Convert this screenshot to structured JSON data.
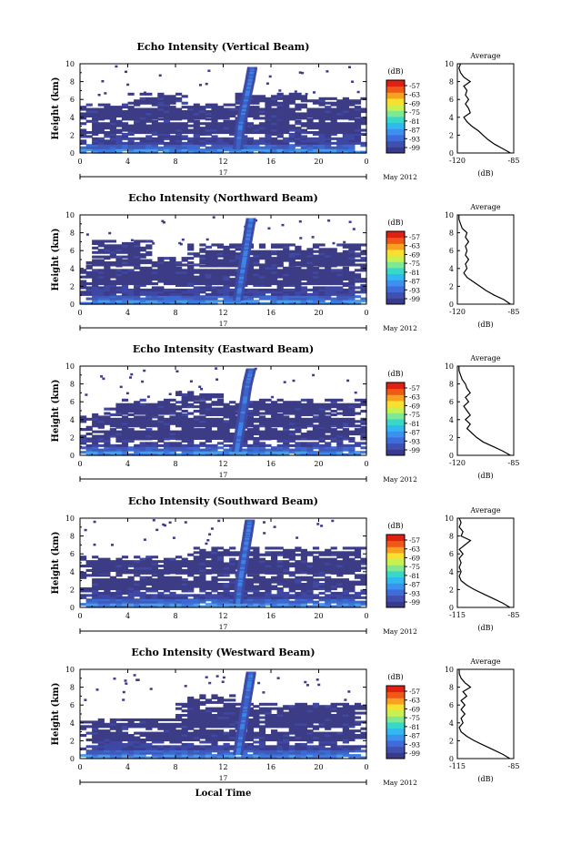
{
  "figure": {
    "xlabel": "Local Time",
    "date_label": "May 2012",
    "day_label": "17"
  },
  "colorbar": {
    "unit": "(dB)",
    "ticks": [
      "-57",
      "-63",
      "-69",
      "-75",
      "-81",
      "-87",
      "-93",
      "-99"
    ],
    "colors": [
      "#3a3a8c",
      "#4050b0",
      "#3f6cd8",
      "#3c90ee",
      "#30b8f0",
      "#38d8c8",
      "#80e890",
      "#c8f050",
      "#f8e030",
      "#f8a020",
      "#f05818",
      "#e02010"
    ]
  },
  "chart_data": [
    {
      "type": "heatmap",
      "title": "Echo Intensity (Vertical Beam)",
      "ylabel": "Height (km)",
      "x_ticks": [
        "0",
        "4",
        "8",
        "12",
        "16",
        "20",
        "0"
      ],
      "y_ticks": [
        "0",
        "2",
        "4",
        "6",
        "8",
        "10"
      ],
      "xlim": [
        0,
        24
      ],
      "ylim": [
        0,
        10
      ],
      "profile": {
        "title": "Average",
        "xlabel": "(dB)",
        "x_ticks": [
          "-120",
          "-85"
        ],
        "xlim": [
          -120,
          -85
        ],
        "y_ticks": [
          "0",
          "2",
          "4",
          "6",
          "8",
          "10"
        ],
        "h": [
          0,
          0.5,
          1,
          1.5,
          2,
          2.5,
          3,
          3.5,
          4,
          4.5,
          5,
          5.5,
          6,
          6.5,
          7,
          7.5,
          8,
          8.5,
          9,
          9.5,
          10
        ],
        "v": [
          -87,
          -92,
          -97,
          -101,
          -104,
          -107,
          -111,
          -114,
          -116,
          -112,
          -113,
          -115,
          -113,
          -115,
          -114,
          -116,
          -112,
          -116,
          -118,
          -119,
          -118
        ]
      },
      "blocks": [
        [
          0,
          0,
          24,
          2.2,
          1
        ],
        [
          0,
          2.2,
          24,
          3.8,
          0
        ],
        [
          0,
          3.8,
          24,
          5.5,
          0
        ],
        [
          4,
          5.5,
          9,
          6.6,
          0
        ],
        [
          13,
          5.5,
          19,
          6.6,
          0
        ],
        [
          19,
          5.5,
          24,
          6.2,
          0
        ]
      ],
      "plume": [
        [
          13.2,
          0.5
        ],
        [
          13.4,
          3
        ],
        [
          13.8,
          5.5
        ],
        [
          14.2,
          8
        ],
        [
          14.4,
          9.5
        ]
      ]
    },
    {
      "type": "heatmap",
      "title": "Echo Intensity (Northward Beam)",
      "ylabel": "Height (km)",
      "x_ticks": [
        "0",
        "4",
        "8",
        "12",
        "16",
        "20",
        "0"
      ],
      "y_ticks": [
        "0",
        "2",
        "4",
        "6",
        "8",
        "10"
      ],
      "xlim": [
        0,
        24
      ],
      "ylim": [
        0,
        10
      ],
      "profile": {
        "title": "Average",
        "xlabel": "(dB)",
        "x_ticks": [
          "-120",
          "-85"
        ],
        "xlim": [
          -120,
          -85
        ],
        "y_ticks": [
          "0",
          "2",
          "4",
          "6",
          "8",
          "10"
        ],
        "h": [
          0,
          0.5,
          1,
          1.5,
          2,
          2.5,
          3,
          3.5,
          4,
          4.5,
          5,
          5.5,
          6,
          6.5,
          7,
          7.5,
          8,
          8.5,
          9,
          9.5,
          10
        ],
        "v": [
          -87,
          -91,
          -97,
          -102,
          -106,
          -110,
          -114,
          -116,
          -114,
          -115,
          -113,
          -115,
          -114,
          -115,
          -113,
          -115,
          -114,
          -117,
          -118,
          -119,
          -119
        ]
      },
      "blocks": [
        [
          0,
          0,
          24,
          2.2,
          1
        ],
        [
          0,
          2.2,
          24,
          4.3,
          0
        ],
        [
          0,
          4.3,
          9,
          5.2,
          0
        ],
        [
          9,
          4.3,
          24,
          6.6,
          0
        ],
        [
          1,
          5.2,
          6,
          7.2,
          0
        ]
      ],
      "plume": [
        [
          13.2,
          0.5
        ],
        [
          13.5,
          3
        ],
        [
          13.8,
          5.5
        ],
        [
          14.1,
          8
        ],
        [
          14.3,
          9.5
        ]
      ]
    },
    {
      "type": "heatmap",
      "title": "Echo Intensity (Eastward Beam)",
      "ylabel": "Height (km)",
      "x_ticks": [
        "0",
        "4",
        "8",
        "12",
        "16",
        "20",
        "0"
      ],
      "y_ticks": [
        "0",
        "2",
        "4",
        "6",
        "8",
        "10"
      ],
      "xlim": [
        0,
        24
      ],
      "ylim": [
        0,
        10
      ],
      "profile": {
        "title": "Average",
        "xlabel": "(dB)",
        "x_ticks": [
          "-120",
          "-85"
        ],
        "xlim": [
          -120,
          -85
        ],
        "y_ticks": [
          "0",
          "2",
          "4",
          "6",
          "8",
          "10"
        ],
        "h": [
          0,
          0.5,
          1,
          1.5,
          2,
          2.5,
          3,
          3.5,
          4,
          4.5,
          5,
          5.5,
          6,
          6.5,
          7,
          7.5,
          8,
          8.5,
          9,
          9.5,
          10
        ],
        "v": [
          -87,
          -92,
          -98,
          -104,
          -108,
          -111,
          -114,
          -112,
          -115,
          -112,
          -114,
          -116,
          -113,
          -115,
          -112,
          -114,
          -115,
          -117,
          -118,
          -119,
          -119
        ]
      },
      "blocks": [
        [
          0,
          0,
          24,
          1.8,
          1
        ],
        [
          0,
          1.8,
          24,
          3.2,
          0
        ],
        [
          0,
          3.2,
          24,
          4.6,
          0
        ],
        [
          2,
          4.6,
          9,
          6.2,
          0
        ],
        [
          9,
          4.6,
          24,
          6.2,
          0
        ],
        [
          8,
          6.2,
          12,
          7.2,
          0
        ]
      ],
      "plume": [
        [
          13.1,
          0.5
        ],
        [
          13.4,
          3
        ],
        [
          13.7,
          5.5
        ],
        [
          14,
          8
        ],
        [
          14.3,
          9.6
        ]
      ]
    },
    {
      "type": "heatmap",
      "title": "Echo Intensity (Southward Beam)",
      "ylabel": "Height (km)",
      "x_ticks": [
        "0",
        "4",
        "8",
        "12",
        "16",
        "20",
        "0"
      ],
      "y_ticks": [
        "0",
        "2",
        "4",
        "6",
        "8",
        "10"
      ],
      "xlim": [
        0,
        24
      ],
      "ylim": [
        0,
        10
      ],
      "profile": {
        "title": "Average",
        "xlabel": "(dB)",
        "x_ticks": [
          "-115",
          "-85"
        ],
        "xlim": [
          -115,
          -85
        ],
        "y_ticks": [
          "0",
          "2",
          "4",
          "6",
          "8",
          "10"
        ],
        "h": [
          0,
          0.5,
          1,
          1.5,
          2,
          2.5,
          3,
          3.5,
          4,
          4.5,
          5,
          5.5,
          6,
          6.5,
          7,
          7.5,
          8,
          8.5,
          9,
          9.5,
          10
        ],
        "v": [
          -87,
          -91,
          -96,
          -101,
          -106,
          -110,
          -113,
          -114,
          -113,
          -114,
          -113,
          -114,
          -112,
          -114,
          -111,
          -108,
          -113,
          -112,
          -114,
          -113,
          -114
        ]
      },
      "blocks": [
        [
          0,
          0,
          24,
          2,
          1
        ],
        [
          0,
          2,
          24,
          3.8,
          0
        ],
        [
          0,
          3.8,
          24,
          5.8,
          0
        ],
        [
          9,
          5.8,
          24,
          6.8,
          0
        ]
      ],
      "plume": [
        [
          13.2,
          0.5
        ],
        [
          13.4,
          3
        ],
        [
          13.7,
          5.5
        ],
        [
          14,
          8
        ],
        [
          14.2,
          9.7
        ]
      ]
    },
    {
      "type": "heatmap",
      "title": "Echo Intensity (Westward Beam)",
      "ylabel": "Height (km)",
      "x_ticks": [
        "0",
        "4",
        "8",
        "12",
        "16",
        "20",
        "0"
      ],
      "y_ticks": [
        "0",
        "2",
        "4",
        "6",
        "8",
        "10"
      ],
      "xlim": [
        0,
        24
      ],
      "ylim": [
        0,
        10
      ],
      "profile": {
        "title": "Average",
        "xlabel": "(dB)",
        "x_ticks": [
          "-115",
          "-85"
        ],
        "xlim": [
          -115,
          -85
        ],
        "y_ticks": [
          "0",
          "2",
          "4",
          "6",
          "8",
          "10"
        ],
        "h": [
          0,
          0.5,
          1,
          1.5,
          2,
          2.5,
          3,
          3.5,
          4,
          4.5,
          5,
          5.5,
          6,
          6.5,
          7,
          7.5,
          8,
          8.5,
          9,
          9.5,
          10
        ],
        "v": [
          -87,
          -91,
          -96,
          -101,
          -106,
          -110,
          -113,
          -114,
          -112,
          -113,
          -111,
          -113,
          -111,
          -113,
          -110,
          -112,
          -108,
          -111,
          -113,
          -114,
          -114
        ]
      },
      "blocks": [
        [
          0,
          0,
          24,
          2,
          1
        ],
        [
          0,
          2,
          24,
          3.5,
          0
        ],
        [
          0,
          3.5,
          12,
          4.5,
          0
        ],
        [
          8,
          3.5,
          24,
          6.2,
          0
        ],
        [
          9,
          6.2,
          13,
          7,
          0
        ]
      ],
      "plume": [
        [
          13.2,
          0.5
        ],
        [
          13.5,
          3
        ],
        [
          13.8,
          5.5
        ],
        [
          14.1,
          8
        ],
        [
          14.3,
          9.6
        ]
      ]
    }
  ]
}
